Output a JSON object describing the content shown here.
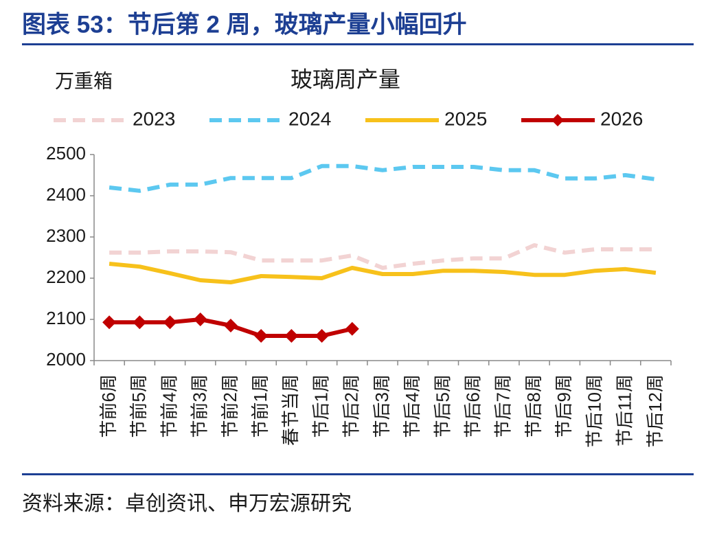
{
  "header": {
    "title": "图表 53：节后第 2 周，玻璃产量小幅回升"
  },
  "source": "资料来源：卓创资讯、申万宏源研究",
  "chart_data": {
    "type": "line",
    "title": "玻璃周产量",
    "y_label": "万重箱",
    "categories": [
      "节前6周",
      "节前5周",
      "节前4周",
      "节前3周",
      "节前2周",
      "节前1周",
      "春节当周",
      "节后1周",
      "节后2周",
      "节后3周",
      "节后4周",
      "节后5周",
      "节后6周",
      "节后7周",
      "节后8周",
      "节后9周",
      "节后10周",
      "节后11周",
      "节后12周"
    ],
    "series": [
      {
        "name": "2023",
        "color": "#f2d3d3",
        "dash": true,
        "values": [
          2262,
          2262,
          2265,
          2265,
          2263,
          2243,
          2243,
          2243,
          2255,
          2225,
          2235,
          2243,
          2248,
          2248,
          2280,
          2262,
          2270,
          2270,
          2270
        ]
      },
      {
        "name": "2024",
        "color": "#5cc8f0",
        "dash": true,
        "values": [
          2420,
          2412,
          2427,
          2427,
          2443,
          2443,
          2443,
          2472,
          2472,
          2462,
          2470,
          2470,
          2470,
          2462,
          2462,
          2442,
          2442,
          2450,
          2440
        ]
      },
      {
        "name": "2025",
        "color": "#f7c11b",
        "dash": false,
        "values": [
          2235,
          2228,
          2212,
          2195,
          2190,
          2205,
          2203,
          2200,
          2225,
          2210,
          2210,
          2218,
          2218,
          2215,
          2208,
          2208,
          2218,
          2222,
          2213
        ]
      },
      {
        "name": "2026",
        "color": "#c00000",
        "dash": false,
        "marker": "diamond",
        "values": [
          2093,
          2093,
          2093,
          2100,
          2085,
          2060,
          2060,
          2060,
          2077,
          null,
          null,
          null,
          null,
          null,
          null,
          null,
          null,
          null,
          null
        ]
      }
    ],
    "ylim": [
      2000,
      2500
    ],
    "yticks": [
      2000,
      2100,
      2200,
      2300,
      2400,
      2500
    ],
    "grid": false
  }
}
